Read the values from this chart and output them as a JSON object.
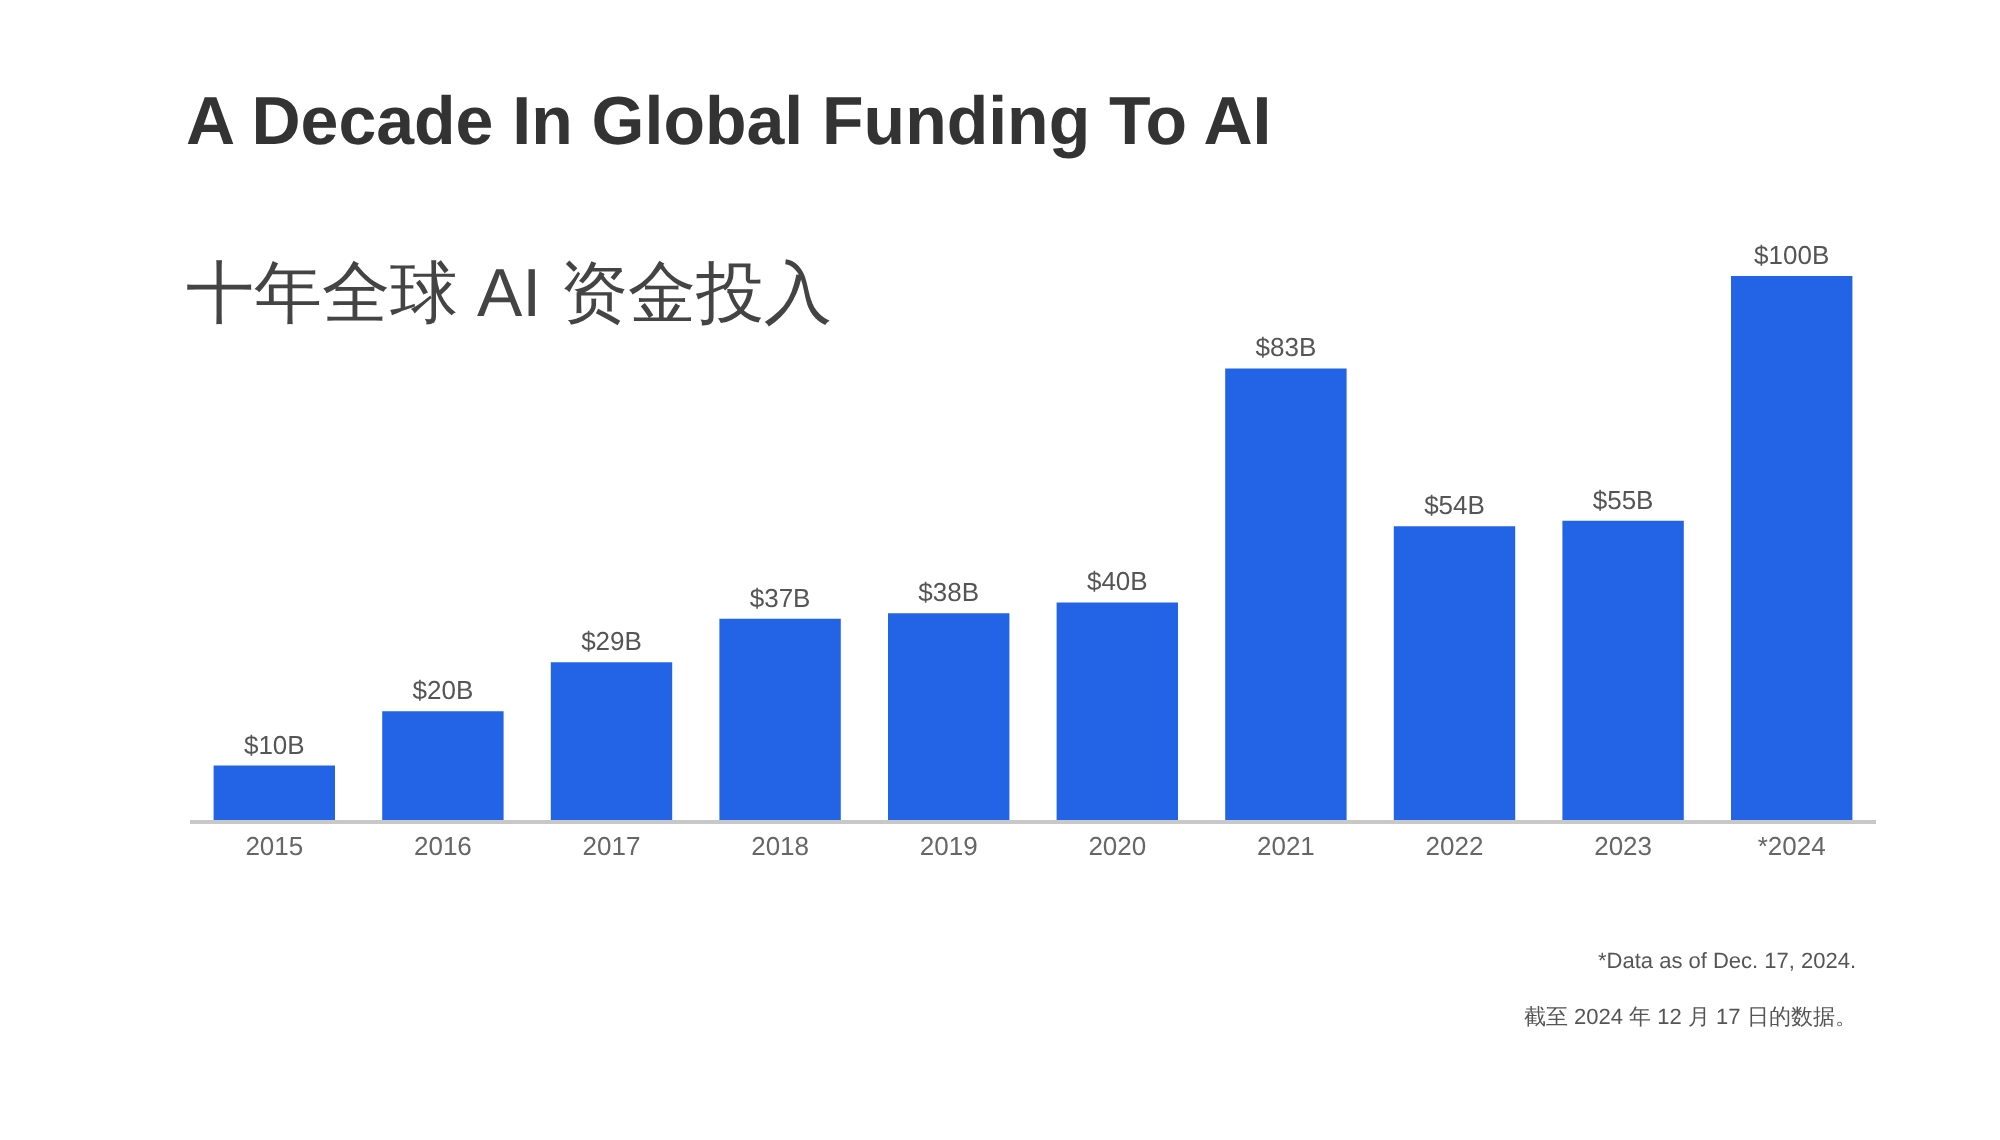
{
  "chart_data": {
    "type": "bar",
    "title": "A Decade In Global Funding To AI",
    "subtitle": "十年全球 AI 资金投入",
    "categories": [
      "2015",
      "2016",
      "2017",
      "2018",
      "2019",
      "2020",
      "2021",
      "2022",
      "2023",
      "*2024"
    ],
    "values": [
      10,
      20,
      29,
      37,
      38,
      40,
      83,
      54,
      55,
      100
    ],
    "value_labels": [
      "$10B",
      "$20B",
      "$29B",
      "$37B",
      "$38B",
      "$40B",
      "$83B",
      "$54B",
      "$55B",
      "$100B"
    ],
    "color": "#2264e5",
    "annotations": [
      "*Data as of Dec. 17, 2024.",
      "截至 2024 年 12 月 17 日的数据。"
    ]
  }
}
